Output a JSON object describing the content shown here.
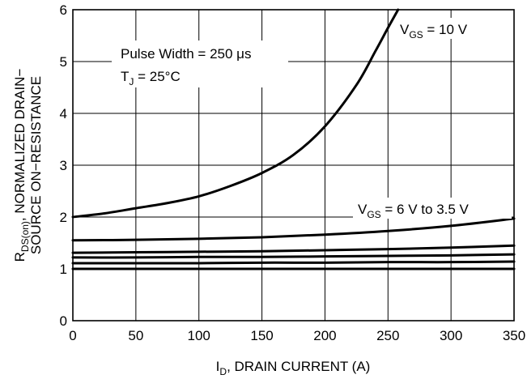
{
  "chart_data": {
    "type": "line",
    "xlabel_main": "I",
    "xlabel_sub": "D",
    "xlabel_rest": ", DRAIN CURRENT (A)",
    "ylabel_line1_main": "R",
    "ylabel_line1_sub": "DS(on)",
    "ylabel_line1_rest": ", NORMALIZED DRAIN−",
    "ylabel_line2": "SOURCE ON−RESISTANCE",
    "xlim": [
      0,
      350
    ],
    "ylim": [
      0,
      6
    ],
    "xticks": [
      "0",
      "50",
      "100",
      "150",
      "200",
      "250",
      "300",
      "350"
    ],
    "yticks": [
      "0",
      "1",
      "2",
      "3",
      "4",
      "5",
      "6"
    ],
    "grid": true,
    "annotations": {
      "pulse_width": "Pulse Width = 250 μs",
      "tj_main": "T",
      "tj_sub": "J",
      "tj_rest": " = 25°C",
      "vgs10_main": "V",
      "vgs10_sub": "GS",
      "vgs10_rest": " = 10 V",
      "vgs6_main": "V",
      "vgs6_sub": "GS",
      "vgs6_rest": " = 6 V to 3.5 V"
    },
    "series": [
      {
        "x": [
          0,
          25,
          50,
          75,
          100,
          125,
          150,
          175,
          200,
          225,
          240,
          250,
          258
        ],
        "y": [
          2.0,
          2.07,
          2.17,
          2.27,
          2.4,
          2.6,
          2.85,
          3.2,
          3.75,
          4.55,
          5.2,
          5.65,
          6.0
        ]
      },
      {
        "x": [
          0,
          50,
          100,
          150,
          200,
          250,
          300,
          350
        ],
        "y": [
          1.55,
          1.56,
          1.58,
          1.61,
          1.66,
          1.73,
          1.83,
          1.97
        ]
      },
      {
        "x": [
          0,
          50,
          100,
          150,
          200,
          250,
          300,
          350
        ],
        "y": [
          1.31,
          1.32,
          1.33,
          1.34,
          1.36,
          1.38,
          1.41,
          1.45
        ]
      },
      {
        "x": [
          0,
          50,
          100,
          150,
          200,
          250,
          300,
          350
        ],
        "y": [
          1.22,
          1.22,
          1.23,
          1.23,
          1.24,
          1.25,
          1.26,
          1.28
        ]
      },
      {
        "x": [
          0,
          50,
          100,
          150,
          200,
          250,
          300,
          350
        ],
        "y": [
          1.11,
          1.11,
          1.11,
          1.12,
          1.12,
          1.13,
          1.13,
          1.14
        ]
      },
      {
        "x": [
          0,
          50,
          100,
          150,
          200,
          250,
          300,
          350
        ],
        "y": [
          1.0,
          1.0,
          1.0,
          1.0,
          1.0,
          1.0,
          1.0,
          1.0
        ]
      }
    ]
  }
}
